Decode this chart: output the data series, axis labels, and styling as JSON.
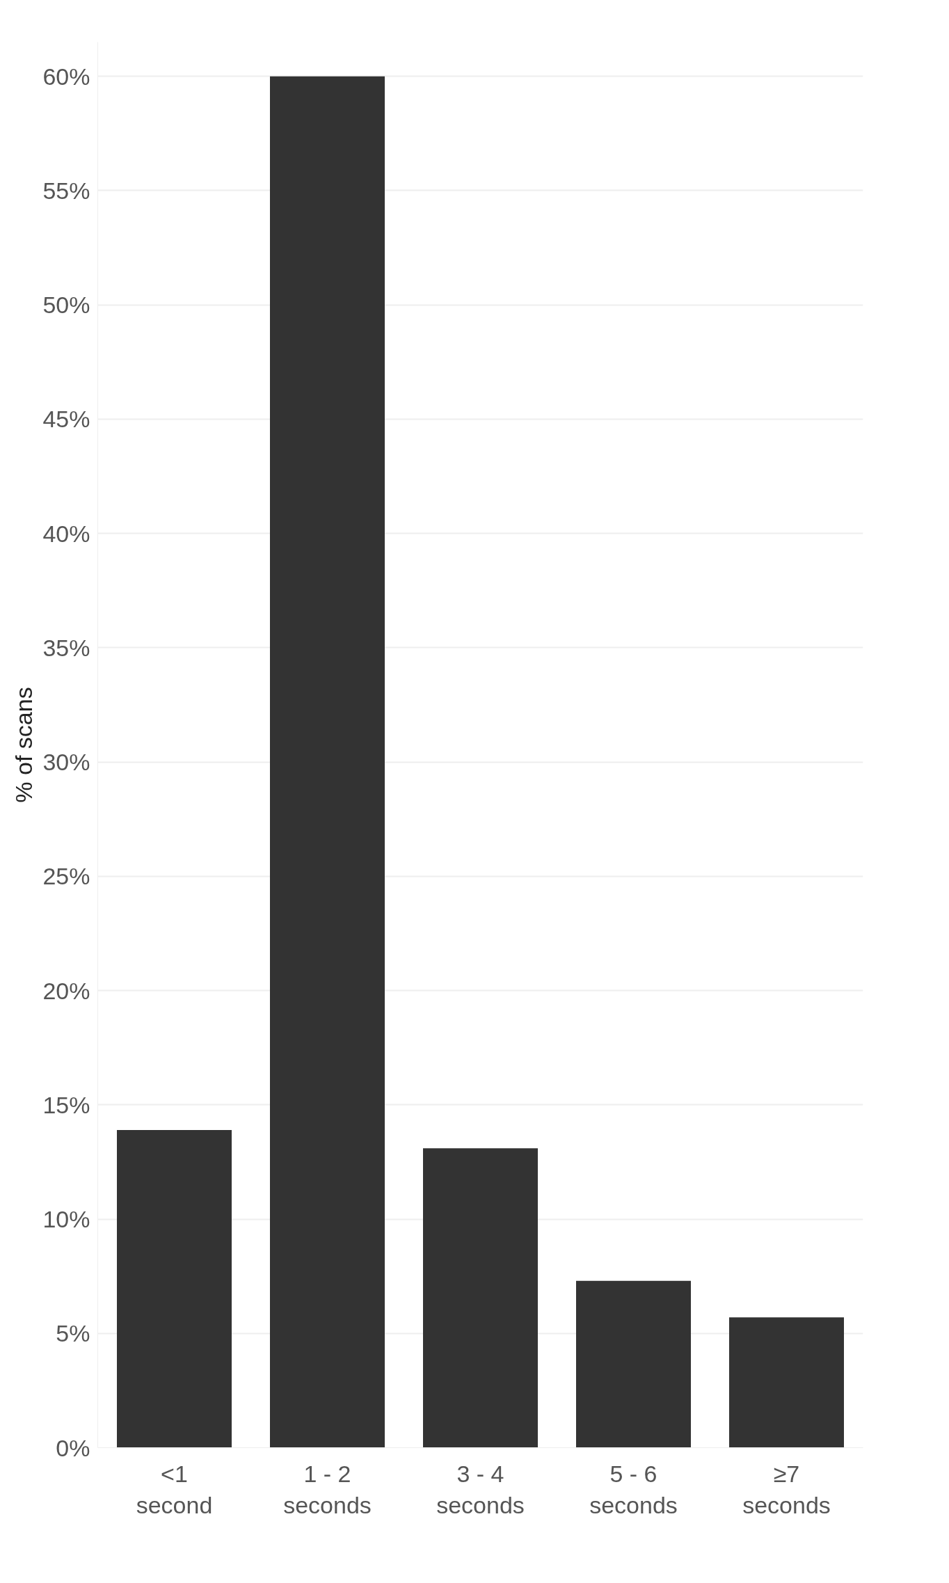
{
  "chart_data": {
    "type": "bar",
    "ylabel": "% of scans",
    "categories": [
      "<1\nsecond",
      "1 - 2\nseconds",
      "3 - 4\nseconds",
      "5 - 6\nseconds",
      "≥7\nseconds"
    ],
    "values": [
      13.9,
      60.0,
      13.1,
      7.3,
      5.7
    ],
    "color": "#333333",
    "ylim": [
      0,
      61.5
    ],
    "yticks": [
      {
        "value": 0,
        "label": "0%"
      },
      {
        "value": 5,
        "label": "5%"
      },
      {
        "value": 10,
        "label": "10%"
      },
      {
        "value": 15,
        "label": "15%"
      },
      {
        "value": 20,
        "label": "20%"
      },
      {
        "value": 25,
        "label": "25%"
      },
      {
        "value": 30,
        "label": "30%"
      },
      {
        "value": 35,
        "label": "35%"
      },
      {
        "value": 40,
        "label": "40%"
      },
      {
        "value": 45,
        "label": "45%"
      },
      {
        "value": 50,
        "label": "50%"
      },
      {
        "value": 55,
        "label": "55%"
      },
      {
        "value": 60,
        "label": "60%"
      }
    ],
    "grid": "y"
  }
}
